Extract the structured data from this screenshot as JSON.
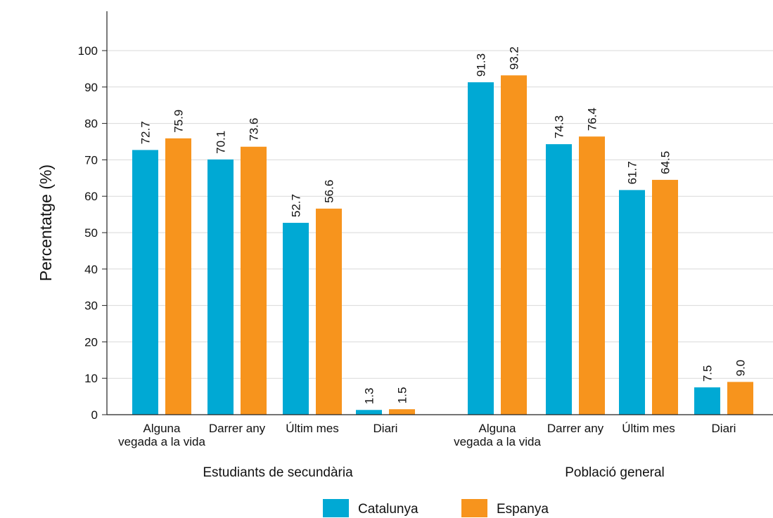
{
  "chart_data": {
    "type": "bar",
    "ylabel": "Percentatge (%)",
    "ylim": [
      0,
      110
    ],
    "yticks": [
      0,
      10,
      20,
      30,
      40,
      50,
      60,
      70,
      80,
      90,
      100
    ],
    "grid": true,
    "legend_position": "bottom-center",
    "groups": [
      {
        "label": "Estudiants de secundària",
        "categories": [
          [
            "Alguna",
            "vegada a la vida"
          ],
          [
            "Darrer any"
          ],
          [
            "Últim mes"
          ],
          [
            "Diari"
          ]
        ]
      },
      {
        "label": "Població general",
        "categories": [
          [
            "Alguna",
            "vegada a la vida"
          ],
          [
            "Darrer any"
          ],
          [
            "Últim mes"
          ],
          [
            "Diari"
          ]
        ]
      }
    ],
    "series": [
      {
        "name": "Catalunya",
        "color": "#00a9d4",
        "values": [
          72.7,
          70.1,
          52.7,
          1.3,
          91.3,
          74.3,
          61.7,
          7.5
        ],
        "labels": [
          "72.7",
          "70.1",
          "52.7",
          "1.3",
          "91.3",
          "74.3",
          "61.7",
          "7.5"
        ]
      },
      {
        "name": "Espanya",
        "color": "#f7941d",
        "values": [
          75.9,
          73.6,
          56.6,
          1.5,
          93.2,
          76.4,
          64.5,
          9.0
        ],
        "labels": [
          "75.9",
          "73.6",
          "56.6",
          "1.5",
          "93.2",
          "76.4",
          "64.5",
          "9.0"
        ]
      }
    ]
  }
}
